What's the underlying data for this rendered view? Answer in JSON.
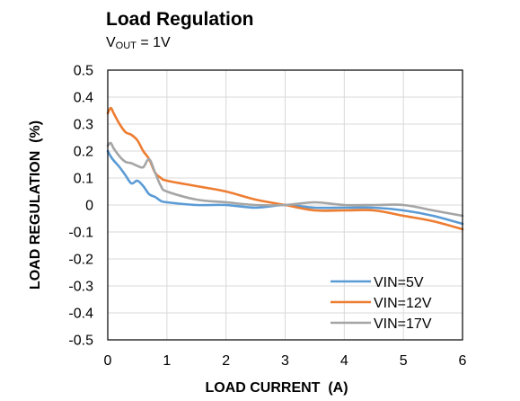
{
  "chart_data": {
    "type": "line",
    "title": "Load Regulation",
    "subtitle": {
      "main": "V",
      "sub": "OUT",
      "rest": " = 1V"
    },
    "xlabel": "LOAD CURRENT  (A)",
    "ylabel": "LOAD REGULATION  (%)",
    "xlim": [
      0,
      6
    ],
    "ylim": [
      -0.5,
      0.5
    ],
    "xticks": [
      0,
      1,
      2,
      3,
      4,
      5,
      6
    ],
    "yticks": [
      -0.5,
      -0.4,
      -0.3,
      -0.2,
      -0.1,
      0,
      0.1,
      0.2,
      0.3,
      0.4,
      0.5
    ],
    "xtick_labels": [
      "0",
      "1",
      "2",
      "3",
      "4",
      "5",
      "6"
    ],
    "ytick_labels": [
      "-0.5",
      "-0.4",
      "-0.3",
      "-0.2",
      "-0.1",
      "0",
      "0.1",
      "0.2",
      "0.3",
      "0.4",
      "0.5"
    ],
    "grid": true,
    "legend_position": "bottom-right",
    "series": [
      {
        "name": "VIN=5V",
        "color": "#5b9bd5",
        "x": [
          0,
          0.05,
          0.1,
          0.2,
          0.3,
          0.4,
          0.5,
          0.6,
          0.7,
          0.8,
          0.9,
          1.0,
          1.5,
          2.0,
          2.5,
          3.0,
          3.5,
          4.0,
          4.5,
          5.0,
          5.5,
          6.0
        ],
        "y": [
          0.2,
          0.18,
          0.165,
          0.14,
          0.11,
          0.08,
          0.09,
          0.07,
          0.04,
          0.03,
          0.015,
          0.01,
          0.0,
          0.0,
          -0.01,
          0.0,
          -0.01,
          -0.01,
          -0.01,
          -0.02,
          -0.04,
          -0.07
        ]
      },
      {
        "name": "VIN=12V",
        "color": "#ed7d31",
        "x": [
          0,
          0.05,
          0.1,
          0.2,
          0.3,
          0.4,
          0.5,
          0.6,
          0.7,
          0.8,
          0.9,
          1.0,
          1.5,
          2.0,
          2.5,
          3.0,
          3.5,
          4.0,
          4.5,
          5.0,
          5.5,
          6.0
        ],
        "y": [
          0.34,
          0.36,
          0.34,
          0.3,
          0.27,
          0.26,
          0.24,
          0.2,
          0.17,
          0.12,
          0.1,
          0.09,
          0.07,
          0.05,
          0.02,
          0.0,
          -0.02,
          -0.02,
          -0.02,
          -0.04,
          -0.06,
          -0.09
        ]
      },
      {
        "name": "VIN=17V",
        "color": "#a5a5a5",
        "x": [
          0,
          0.05,
          0.1,
          0.2,
          0.3,
          0.4,
          0.5,
          0.6,
          0.7,
          0.8,
          0.9,
          1.0,
          1.5,
          2.0,
          2.5,
          3.0,
          3.5,
          4.0,
          4.5,
          5.0,
          5.5,
          6.0
        ],
        "y": [
          0.22,
          0.23,
          0.21,
          0.18,
          0.16,
          0.155,
          0.145,
          0.14,
          0.17,
          0.12,
          0.07,
          0.05,
          0.02,
          0.01,
          0.0,
          0.0,
          0.01,
          0.0,
          0.0,
          0.0,
          -0.02,
          -0.04
        ]
      }
    ]
  }
}
